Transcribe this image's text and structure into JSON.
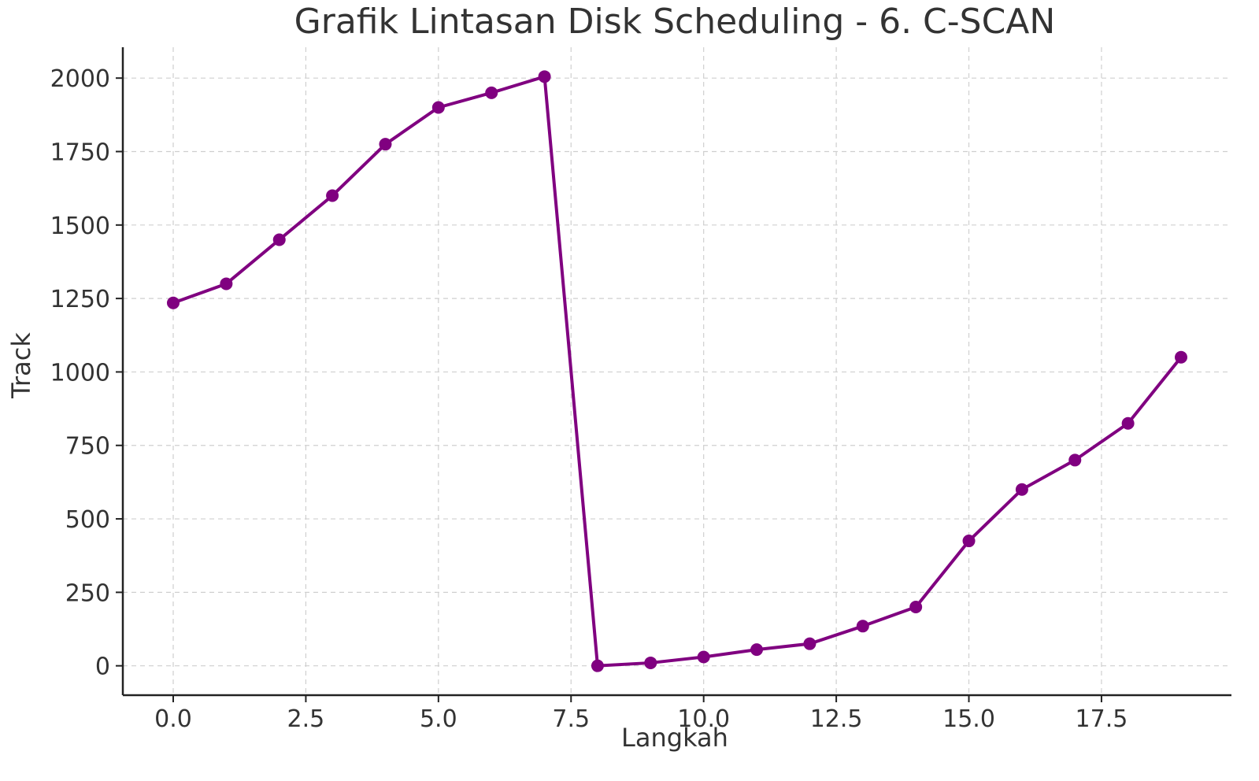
{
  "chart_data": {
    "type": "line",
    "title": "Grafik Lintasan Disk Scheduling - 6. C-SCAN",
    "xlabel": "Langkah",
    "ylabel": "Track",
    "xlim": [
      -0.95,
      19.95
    ],
    "ylim": [
      -100,
      2105
    ],
    "xticks": [
      0.0,
      2.5,
      5.0,
      7.5,
      10.0,
      12.5,
      15.0,
      17.5
    ],
    "xtick_labels": [
      "0.0",
      "2.5",
      "5.0",
      "7.5",
      "10.0",
      "12.5",
      "15.0",
      "17.5"
    ],
    "yticks": [
      0,
      250,
      500,
      750,
      1000,
      1250,
      1500,
      1750,
      2000
    ],
    "ytick_labels": [
      "0",
      "250",
      "500",
      "750",
      "1000",
      "1250",
      "1500",
      "1750",
      "2000"
    ],
    "grid": true,
    "color": "#800080",
    "series": [
      {
        "x": [
          0,
          1,
          2,
          3,
          4,
          5,
          6,
          7,
          8,
          9,
          10,
          11,
          12,
          13,
          14,
          15,
          16,
          17,
          18,
          19
        ],
        "y": [
          1235,
          1300,
          1450,
          1600,
          1775,
          1900,
          1950,
          2005,
          0,
          10,
          30,
          55,
          75,
          135,
          200,
          425,
          600,
          700,
          825,
          1050
        ]
      }
    ]
  }
}
